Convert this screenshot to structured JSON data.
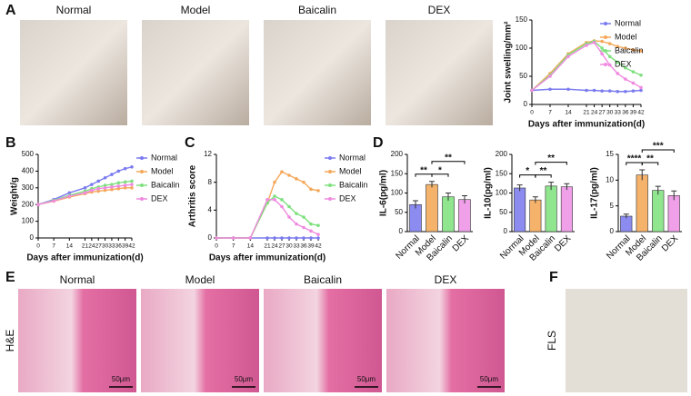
{
  "panel_labels": [
    "A",
    "B",
    "C",
    "D",
    "E",
    "F"
  ],
  "photos_a": [
    "Normal",
    "Model",
    "Baicalin",
    "DEX"
  ],
  "photos_e": [
    "Normal",
    "Model",
    "Baicalin",
    "DEX"
  ],
  "stain_label": "H&E",
  "scale_bar": "50μm",
  "cell_label": "FLS",
  "chart_data": [
    {
      "type": "line",
      "ylabel": "Joint swelling/mm²",
      "xlabel": "Days after immunization(d)",
      "x": [
        0,
        7,
        14,
        21,
        24,
        27,
        30,
        33,
        36,
        39,
        42
      ],
      "xlim": [
        0,
        42
      ],
      "xticks": [
        0,
        7,
        14,
        21,
        24,
        27,
        30,
        33,
        36,
        39,
        42
      ],
      "ylim": [
        0,
        150
      ],
      "yticks": [
        0,
        50,
        100,
        150
      ],
      "legend": "upper right",
      "series": [
        {
          "name": "Normal",
          "color": "#7b7bf0",
          "values": [
            25,
            27,
            27,
            25,
            25,
            24,
            24,
            23,
            23,
            24,
            25
          ]
        },
        {
          "name": "Model",
          "color": "#f5a85a",
          "values": [
            25,
            55,
            90,
            110,
            113,
            112,
            108,
            103,
            100,
            97,
            95
          ]
        },
        {
          "name": "Baicalin",
          "color": "#7ee07e",
          "values": [
            25,
            52,
            88,
            108,
            112,
            100,
            85,
            75,
            65,
            58,
            52
          ]
        },
        {
          "name": "DEX",
          "color": "#f08ae0",
          "values": [
            25,
            50,
            85,
            105,
            110,
            90,
            70,
            55,
            45,
            38,
            30
          ]
        }
      ]
    },
    {
      "type": "line",
      "ylabel": "Weight/g",
      "xlabel": "Days after immunization(d)",
      "x": [
        0,
        7,
        14,
        21,
        24,
        27,
        30,
        33,
        36,
        39,
        42
      ],
      "xlim": [
        0,
        42
      ],
      "xticks": [
        0,
        7,
        14,
        21,
        24,
        27,
        30,
        33,
        36,
        39,
        42
      ],
      "ylim": [
        0,
        500
      ],
      "yticks": [
        0,
        100,
        200,
        300,
        400,
        500
      ],
      "legend": "right",
      "series": [
        {
          "name": "Normal",
          "color": "#7b7bf0",
          "values": [
            200,
            230,
            270,
            300,
            320,
            340,
            360,
            380,
            400,
            415,
            425
          ]
        },
        {
          "name": "Model",
          "color": "#f5a85a",
          "values": [
            200,
            220,
            245,
            265,
            275,
            280,
            285,
            290,
            295,
            300,
            300
          ]
        },
        {
          "name": "Baicalin",
          "color": "#7ee07e",
          "values": [
            200,
            225,
            255,
            280,
            295,
            305,
            315,
            320,
            330,
            335,
            340
          ]
        },
        {
          "name": "DEX",
          "color": "#f08ae0",
          "values": [
            200,
            222,
            250,
            270,
            285,
            295,
            300,
            305,
            310,
            315,
            320
          ]
        }
      ]
    },
    {
      "type": "line",
      "ylabel": "Arthritis score",
      "xlabel": "Days after immunization(d)",
      "x": [
        0,
        7,
        14,
        21,
        24,
        27,
        30,
        33,
        36,
        39,
        42
      ],
      "xlim": [
        0,
        42
      ],
      "xticks": [
        0,
        7,
        14,
        21,
        24,
        27,
        30,
        33,
        36,
        39,
        42
      ],
      "ylim": [
        0,
        12
      ],
      "yticks": [
        0,
        4,
        8,
        12
      ],
      "legend": "right",
      "series": [
        {
          "name": "Normal",
          "color": "#7b7bf0",
          "values": [
            0,
            0,
            0,
            0,
            0,
            0,
            0,
            0,
            0,
            0,
            0
          ]
        },
        {
          "name": "Model",
          "color": "#f5a85a",
          "values": [
            0,
            0,
            0,
            5,
            8,
            9.5,
            9,
            8.5,
            8,
            7,
            6.8
          ]
        },
        {
          "name": "Baicalin",
          "color": "#7ee07e",
          "values": [
            0,
            0,
            0,
            5,
            6,
            5.5,
            4.5,
            3.5,
            3,
            2,
            1.8
          ]
        },
        {
          "name": "DEX",
          "color": "#f08ae0",
          "values": [
            0,
            0,
            0,
            5.5,
            5.5,
            4.5,
            3,
            2,
            1.5,
            1,
            0.5
          ]
        }
      ]
    },
    {
      "type": "bar",
      "ylabel": "IL-6(pg/ml)",
      "categories": [
        "Normal",
        "Model",
        "Baicalin",
        "DEX"
      ],
      "values": [
        70,
        122,
        90,
        83
      ],
      "errors": [
        10,
        8,
        10,
        10
      ],
      "colors": [
        "#8b8bf0",
        "#f5b26b",
        "#8fe68f",
        "#f0a0e8"
      ],
      "ylim": [
        0,
        200
      ],
      "yticks": [
        0,
        50,
        100,
        150,
        200
      ],
      "brackets": [
        {
          "label": "**",
          "pair": [
            "Normal",
            "Model"
          ]
        },
        {
          "label": "*",
          "pair": [
            "Model",
            "Baicalin"
          ]
        },
        {
          "label": "**",
          "pair": [
            "Model",
            "DEX"
          ]
        }
      ]
    },
    {
      "type": "bar",
      "ylabel": "IL-10(pg/ml)",
      "categories": [
        "Normal",
        "Model",
        "Baicalin",
        "DEX"
      ],
      "values": [
        113,
        82,
        118,
        116
      ],
      "errors": [
        8,
        8,
        10,
        8
      ],
      "colors": [
        "#8b8bf0",
        "#f5b26b",
        "#8fe68f",
        "#f0a0e8"
      ],
      "ylim": [
        0,
        200
      ],
      "yticks": [
        0,
        50,
        100,
        150,
        200
      ],
      "brackets": [
        {
          "label": "*",
          "pair": [
            "Normal",
            "Model"
          ]
        },
        {
          "label": "**",
          "pair": [
            "Model",
            "Baicalin"
          ]
        },
        {
          "label": "**",
          "pair": [
            "Model",
            "DEX"
          ]
        }
      ]
    },
    {
      "type": "bar",
      "ylabel": "IL-17(pg/ml)",
      "categories": [
        "Normal",
        "Model",
        "Baicalin",
        "DEX"
      ],
      "values": [
        3,
        11,
        8,
        7
      ],
      "errors": [
        0.4,
        1,
        0.8,
        0.9
      ],
      "colors": [
        "#8b8bf0",
        "#f5b26b",
        "#8fe68f",
        "#f0a0e8"
      ],
      "ylim": [
        0,
        15
      ],
      "yticks": [
        0,
        5,
        10,
        15
      ],
      "brackets": [
        {
          "label": "****",
          "pair": [
            "Normal",
            "Model"
          ]
        },
        {
          "label": "**",
          "pair": [
            "Model",
            "Baicalin"
          ]
        },
        {
          "label": "***",
          "pair": [
            "Model",
            "DEX"
          ]
        }
      ]
    }
  ]
}
